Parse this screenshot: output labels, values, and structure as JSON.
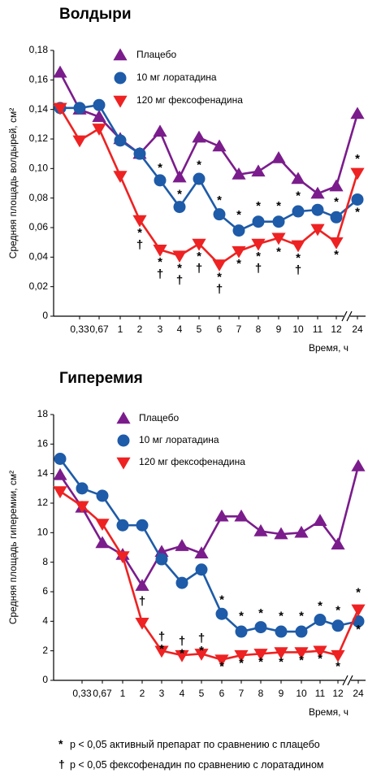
{
  "chart_data": [
    {
      "type": "line",
      "title": "Волдыри",
      "ylabel": "Средняя площадь волдырей, см²",
      "xlabel": "Время, ч",
      "categories": [
        "0",
        "0,33",
        "0,67",
        "1",
        "2",
        "3",
        "4",
        "5",
        "6",
        "7",
        "8",
        "9",
        "10",
        "11",
        "12",
        "24"
      ],
      "x_tick_labels": [
        "0,33",
        "0,67",
        "1",
        "2",
        "3",
        "4",
        "5",
        "6",
        "7",
        "8",
        "9",
        "10",
        "11",
        "12",
        "24"
      ],
      "ylim": [
        0,
        0.18
      ],
      "y_ticks": [
        "0",
        "0,02",
        "0,04",
        "0,06",
        "0,08",
        "0,10",
        "0,12",
        "0,14",
        "0,16",
        "0,18"
      ],
      "axis_break": "between 12 and 24",
      "legend_position": "top-center",
      "series": [
        {
          "name": "Плацебо",
          "color": "#7B1C8C",
          "marker": "triangle-up",
          "values": [
            0.165,
            0.14,
            0.135,
            0.12,
            0.11,
            0.125,
            0.094,
            0.121,
            0.115,
            0.096,
            0.098,
            0.107,
            0.093,
            0.083,
            0.088,
            0.137
          ]
        },
        {
          "name": "10 мг лоратадина",
          "color": "#1E5BA8",
          "marker": "circle",
          "values": [
            0.141,
            0.141,
            0.143,
            0.119,
            0.11,
            0.092,
            0.074,
            0.093,
            0.069,
            0.058,
            0.064,
            0.064,
            0.071,
            0.072,
            0.067,
            0.079
          ]
        },
        {
          "name": "120 мг фексофенадина",
          "color": "#EE2222",
          "marker": "triangle-down",
          "values": [
            0.141,
            0.119,
            0.127,
            0.095,
            0.065,
            0.045,
            0.041,
            0.049,
            0.035,
            0.044,
            0.049,
            0.053,
            0.048,
            0.059,
            0.05,
            0.097
          ]
        }
      ],
      "annotations": [
        {
          "x": "2",
          "symbols": "*\n†",
          "y": 0.054
        },
        {
          "x": "3",
          "symbols": "*",
          "y": 0.098
        },
        {
          "x": "3",
          "symbols": "*\n†",
          "y": 0.034
        },
        {
          "x": "4",
          "symbols": "*",
          "y": 0.08
        },
        {
          "x": "4",
          "symbols": "*\n†",
          "y": 0.03
        },
        {
          "x": "5",
          "symbols": "*",
          "y": 0.1
        },
        {
          "x": "5",
          "symbols": "*\n†",
          "y": 0.038
        },
        {
          "x": "6",
          "symbols": "*",
          "y": 0.076
        },
        {
          "x": "6",
          "symbols": "*\n†",
          "y": 0.024
        },
        {
          "x": "7",
          "symbols": "*",
          "y": 0.066
        },
        {
          "x": "7",
          "symbols": "*",
          "y": 0.033
        },
        {
          "x": "8",
          "symbols": "*",
          "y": 0.072
        },
        {
          "x": "8",
          "symbols": "*\n†",
          "y": 0.038
        },
        {
          "x": "9",
          "symbols": "*",
          "y": 0.072
        },
        {
          "x": "9",
          "symbols": "*",
          "y": 0.041
        },
        {
          "x": "10",
          "symbols": "*",
          "y": 0.079
        },
        {
          "x": "10",
          "symbols": "*\n†",
          "y": 0.037
        },
        {
          "x": "12",
          "symbols": "*",
          "y": 0.075
        },
        {
          "x": "12",
          "symbols": "*",
          "y": 0.039
        },
        {
          "x": "24",
          "symbols": "*",
          "y": 0.104
        },
        {
          "x": "24",
          "symbols": "*",
          "y": 0.068
        }
      ]
    },
    {
      "type": "line",
      "title": "Гиперемия",
      "ylabel": "Средняя площадь гиперемии, см²",
      "xlabel": "Время, ч",
      "categories": [
        "0",
        "0,33",
        "0,67",
        "1",
        "2",
        "3",
        "4",
        "5",
        "6",
        "7",
        "8",
        "9",
        "10",
        "11",
        "12",
        "24"
      ],
      "x_tick_labels": [
        "0,33",
        "0,67",
        "1",
        "2",
        "3",
        "4",
        "5",
        "6",
        "7",
        "8",
        "9",
        "10",
        "11",
        "12",
        "24"
      ],
      "ylim": [
        0,
        18
      ],
      "y_ticks": [
        "0",
        "2",
        "4",
        "6",
        "8",
        "10",
        "12",
        "14",
        "16",
        "18"
      ],
      "axis_break": "between 12 and 24",
      "legend_position": "top-center",
      "series": [
        {
          "name": "Плацебо",
          "color": "#7B1C8C",
          "marker": "triangle-up",
          "values": [
            13.9,
            11.7,
            9.3,
            8.5,
            6.4,
            8.7,
            9.1,
            8.6,
            11.1,
            11.1,
            10.1,
            9.9,
            10.0,
            10.8,
            9.2,
            14.5
          ]
        },
        {
          "name": "10 мг лоратадина",
          "color": "#1E5BA8",
          "marker": "circle",
          "values": [
            15.0,
            13.0,
            12.5,
            10.5,
            10.5,
            8.2,
            6.6,
            7.5,
            4.5,
            3.3,
            3.6,
            3.3,
            3.3,
            4.1,
            3.7,
            4.0
          ]
        },
        {
          "name": "120 мг фексофенадина",
          "color": "#EE2222",
          "marker": "triangle-down",
          "values": [
            12.8,
            11.8,
            10.6,
            8.4,
            3.9,
            2.0,
            1.7,
            1.8,
            1.4,
            1.7,
            1.8,
            1.9,
            1.9,
            2.0,
            1.7,
            4.8
          ]
        }
      ],
      "annotations": [
        {
          "x": "2",
          "symbols": "†",
          "y": 5.1
        },
        {
          "x": "3",
          "symbols": "†\n*",
          "y": 2.7
        },
        {
          "x": "4",
          "symbols": "†\n*",
          "y": 2.4
        },
        {
          "x": "5",
          "symbols": "†\n*",
          "y": 2.6
        },
        {
          "x": "6",
          "symbols": "*",
          "y": 5.2
        },
        {
          "x": "6",
          "symbols": "*",
          "y": 0.7
        },
        {
          "x": "7",
          "symbols": "*",
          "y": 4.1
        },
        {
          "x": "7",
          "symbols": "*",
          "y": 0.9
        },
        {
          "x": "8",
          "symbols": "*",
          "y": 4.3
        },
        {
          "x": "8",
          "symbols": "*",
          "y": 1.0
        },
        {
          "x": "9",
          "symbols": "*",
          "y": 4.1
        },
        {
          "x": "9",
          "symbols": "*",
          "y": 1.0
        },
        {
          "x": "10",
          "symbols": "*",
          "y": 4.1
        },
        {
          "x": "10",
          "symbols": "*",
          "y": 1.1
        },
        {
          "x": "11",
          "symbols": "*",
          "y": 4.8
        },
        {
          "x": "11",
          "symbols": "*",
          "y": 1.2
        },
        {
          "x": "12",
          "symbols": "*",
          "y": 4.5
        },
        {
          "x": "12",
          "symbols": "*",
          "y": 0.7
        },
        {
          "x": "24",
          "symbols": "*",
          "y": 5.7
        },
        {
          "x": "24",
          "symbols": "*",
          "y": 3.2
        }
      ]
    }
  ],
  "footnotes": [
    {
      "symbol": "*",
      "text": "p < 0,05 активный препарат по сравнению с плацебо"
    },
    {
      "symbol": "†",
      "text": "p < 0,05 фексофенадин по сравнению с лоратадином"
    }
  ]
}
